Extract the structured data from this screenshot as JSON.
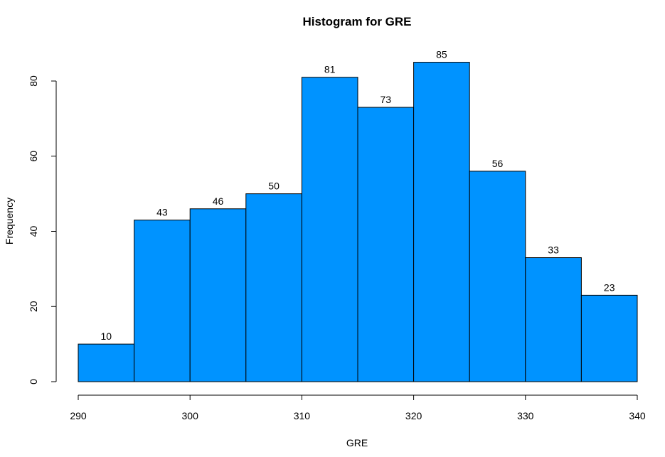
{
  "chart_data": {
    "type": "bar",
    "title": "Histogram for GRE",
    "xlabel": "GRE",
    "ylabel": "Frequency",
    "bin_edges": [
      290,
      295,
      300,
      305,
      310,
      315,
      320,
      325,
      330,
      335,
      340
    ],
    "values": [
      10,
      43,
      46,
      50,
      81,
      73,
      85,
      56,
      33,
      23
    ],
    "xlim": [
      290,
      340
    ],
    "ylim": [
      0,
      85
    ],
    "x_ticks": [
      290,
      300,
      310,
      320,
      330,
      340
    ],
    "y_ticks": [
      0,
      20,
      40,
      60,
      80
    ],
    "bar_color": "#0093FF",
    "grid": false,
    "legend": "none"
  }
}
